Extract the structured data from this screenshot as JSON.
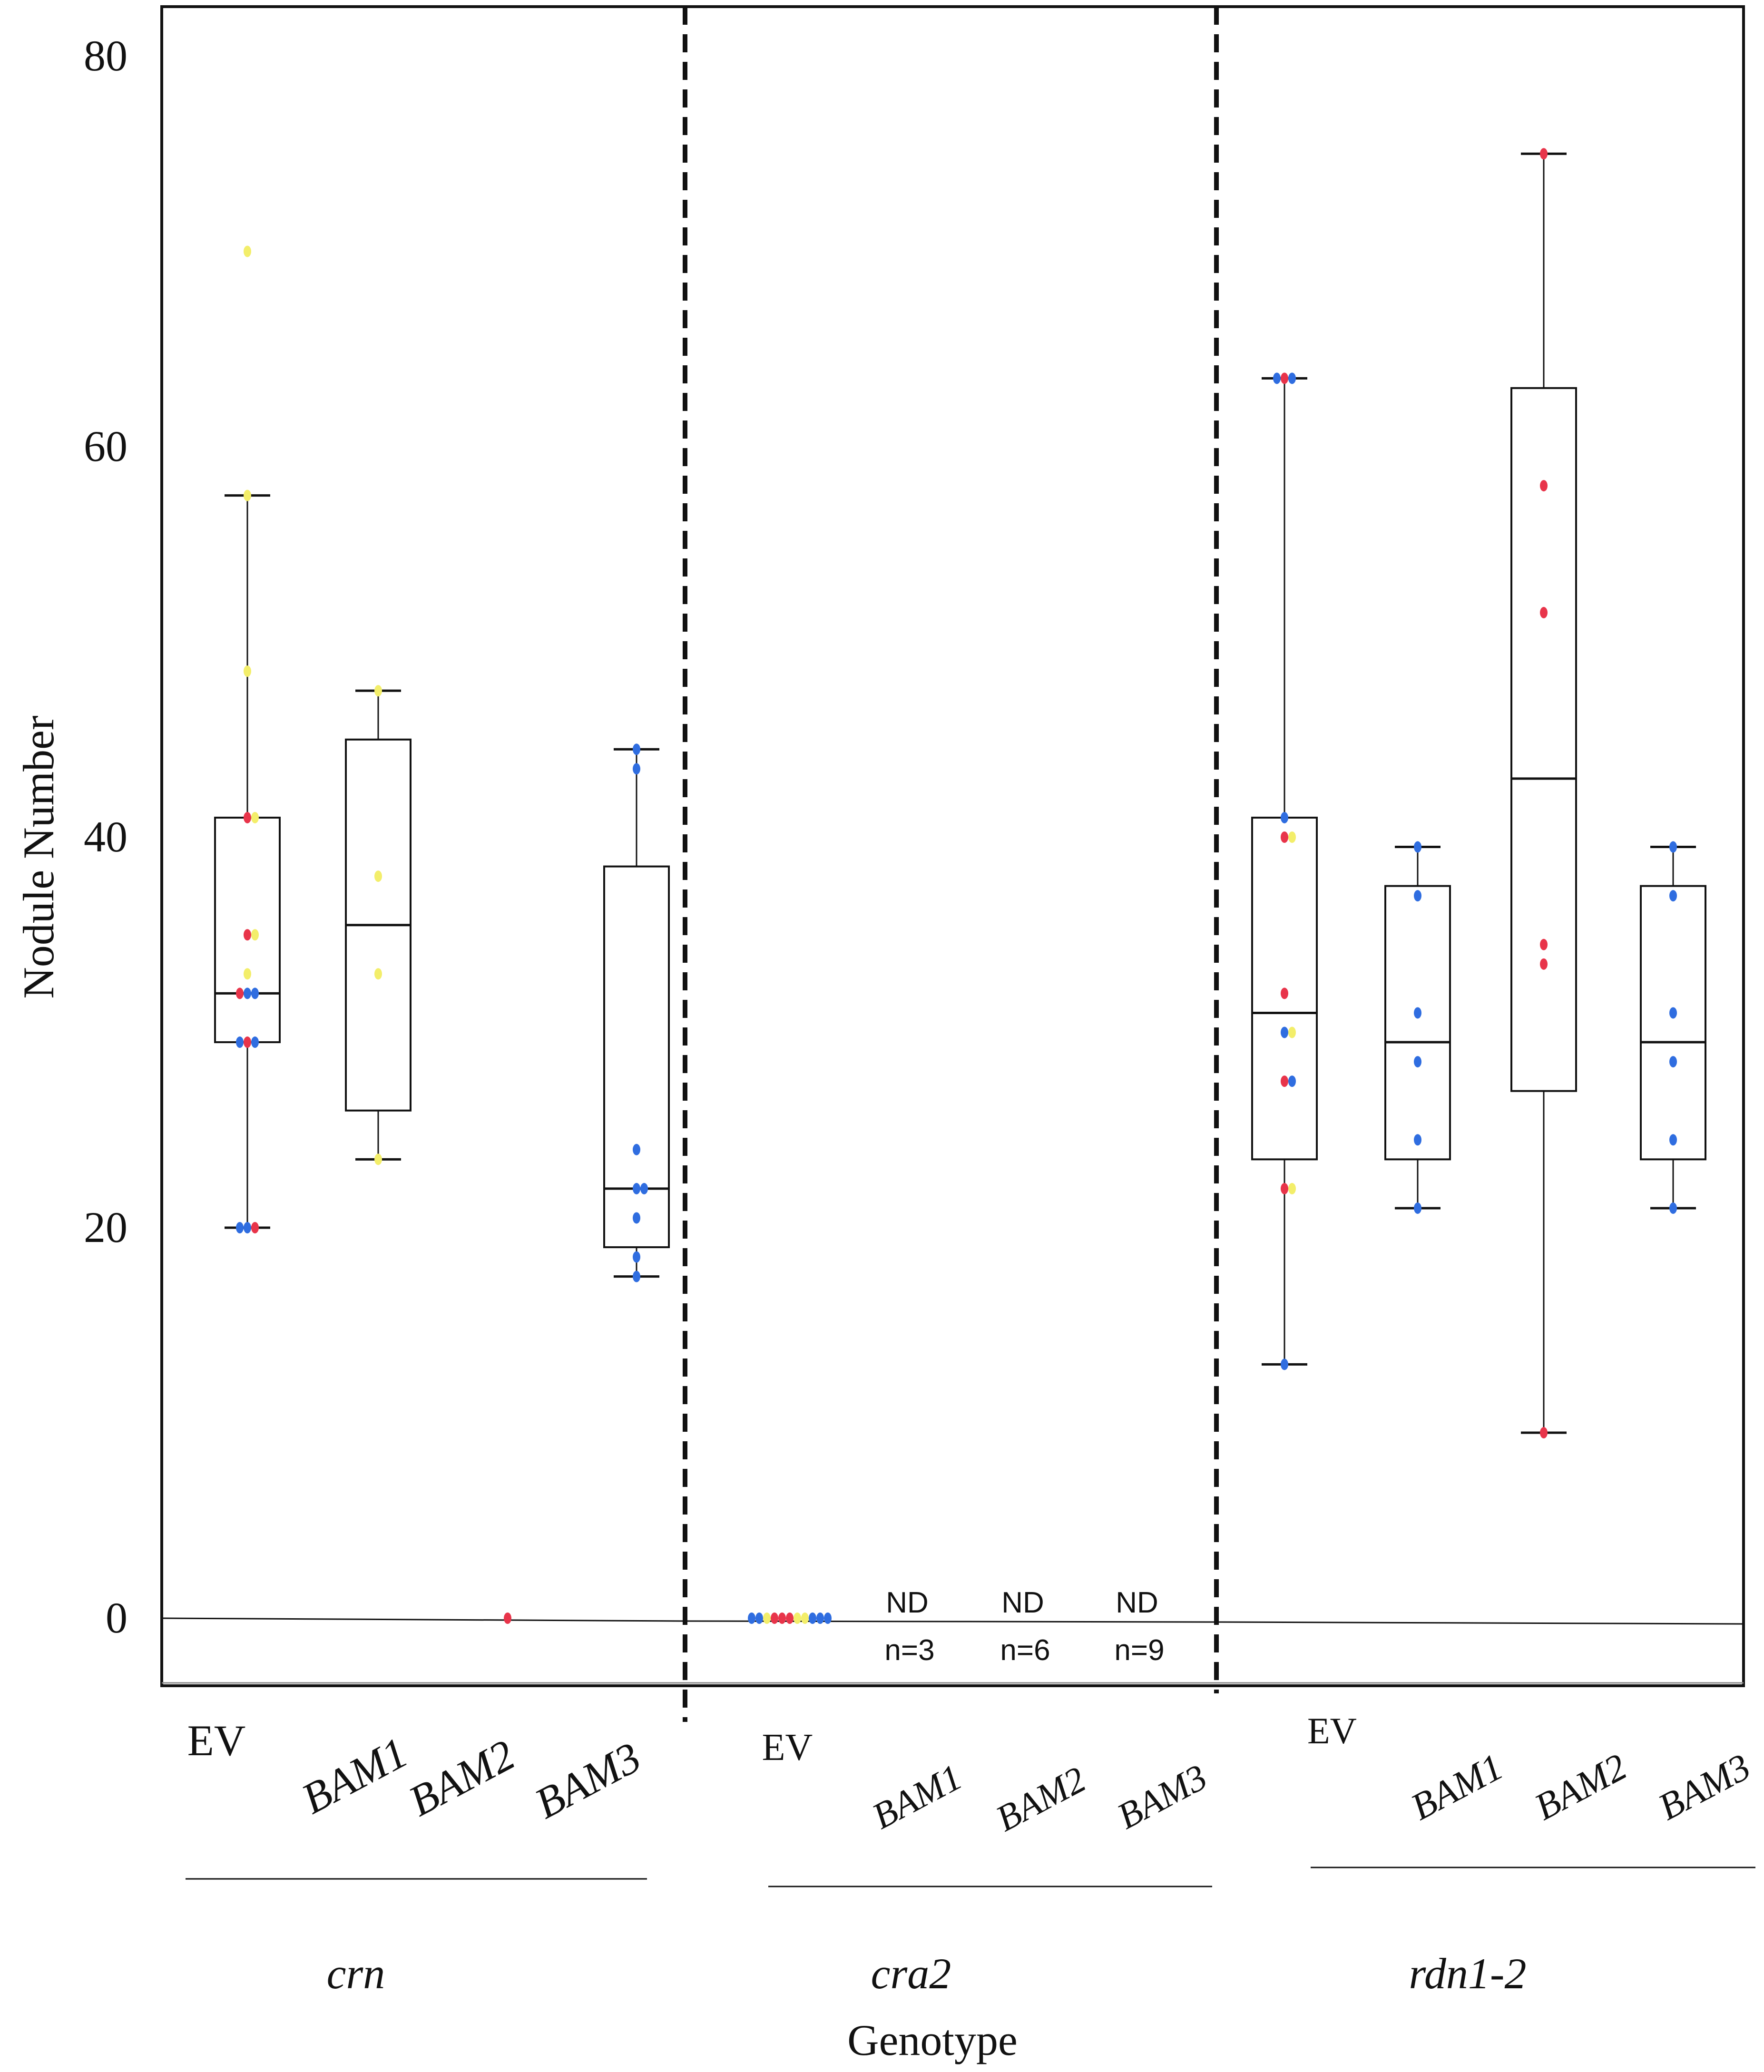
{
  "chart_data": {
    "type": "box",
    "ylabel": "Nodule Number",
    "xlabel": "Genotype",
    "ylim": [
      -4,
      83
    ],
    "yticks": [
      0,
      20,
      40,
      60,
      80
    ],
    "colors": {
      "red": "#e8344a",
      "blue": "#2f6de0",
      "yellow": "#f3ee6a"
    },
    "groups": [
      {
        "name": "crn",
        "boxes": [
          {
            "label": "EV",
            "min": 20,
            "q1": 29.5,
            "median": 32,
            "q3": 41,
            "max": 57.5,
            "points": [
              {
                "y": 70,
                "c": "yellow"
              },
              {
                "y": 57.5,
                "c": "yellow"
              },
              {
                "y": 48.5,
                "c": "yellow"
              },
              {
                "y": 41,
                "c": "red"
              },
              {
                "y": 41,
                "c": "yellow"
              },
              {
                "y": 35,
                "c": "red"
              },
              {
                "y": 35,
                "c": "yellow"
              },
              {
                "y": 33,
                "c": "yellow"
              },
              {
                "y": 32,
                "c": "blue"
              },
              {
                "y": 32,
                "c": "blue"
              },
              {
                "y": 32,
                "c": "red"
              },
              {
                "y": 29.5,
                "c": "red"
              },
              {
                "y": 29.5,
                "c": "blue"
              },
              {
                "y": 29.5,
                "c": "blue"
              },
              {
                "y": 20,
                "c": "blue"
              },
              {
                "y": 20,
                "c": "red"
              },
              {
                "y": 20,
                "c": "blue"
              }
            ]
          },
          {
            "label": "BAM1",
            "min": 23.5,
            "q1": 26,
            "median": 35.5,
            "q3": 45,
            "max": 47.5,
            "points": [
              {
                "y": 47.5,
                "c": "yellow"
              },
              {
                "y": 38,
                "c": "yellow"
              },
              {
                "y": 33,
                "c": "yellow"
              },
              {
                "y": 23.5,
                "c": "yellow"
              }
            ]
          },
          {
            "label": "BAM2",
            "min": 0,
            "q1": 0,
            "median": 0,
            "q3": 0,
            "max": 0,
            "points": [
              {
                "y": 0,
                "c": "red"
              }
            ]
          },
          {
            "label": "BAM3",
            "min": 17.5,
            "q1": 19,
            "median": 22,
            "q3": 38.5,
            "max": 44.5,
            "points": [
              {
                "y": 44.5,
                "c": "blue"
              },
              {
                "y": 43.5,
                "c": "blue"
              },
              {
                "y": 24,
                "c": "blue"
              },
              {
                "y": 22,
                "c": "blue"
              },
              {
                "y": 22,
                "c": "blue"
              },
              {
                "y": 20.5,
                "c": "blue"
              },
              {
                "y": 18.5,
                "c": "blue"
              },
              {
                "y": 17.5,
                "c": "blue"
              }
            ]
          }
        ]
      },
      {
        "name": "cra2",
        "boxes": [
          {
            "label": "EV",
            "min": 0,
            "q1": 0,
            "median": 0,
            "q3": 0,
            "max": 0,
            "points": [
              {
                "y": 0,
                "c": "blue"
              },
              {
                "y": 0,
                "c": "blue"
              },
              {
                "y": 0,
                "c": "yellow"
              },
              {
                "y": 0,
                "c": "red"
              },
              {
                "y": 0,
                "c": "red"
              },
              {
                "y": 0,
                "c": "red"
              },
              {
                "y": 0,
                "c": "yellow"
              },
              {
                "y": 0,
                "c": "yellow"
              },
              {
                "y": 0,
                "c": "blue"
              },
              {
                "y": 0,
                "c": "blue"
              },
              {
                "y": 0,
                "c": "blue"
              }
            ]
          },
          {
            "label": "BAM1",
            "nd": "ND",
            "n": "n=3"
          },
          {
            "label": "BAM2",
            "nd": "ND",
            "n": "n=6"
          },
          {
            "label": "BAM3",
            "nd": "ND",
            "n": "n=9"
          }
        ]
      },
      {
        "name": "rdn1-2",
        "boxes": [
          {
            "label": "EV",
            "min": 13,
            "q1": 23.5,
            "median": 31,
            "q3": 41,
            "max": 63.5,
            "points": [
              {
                "y": 63.5,
                "c": "red"
              },
              {
                "y": 63.5,
                "c": "blue"
              },
              {
                "y": 63.5,
                "c": "blue"
              },
              {
                "y": 41,
                "c": "blue"
              },
              {
                "y": 40,
                "c": "red"
              },
              {
                "y": 40,
                "c": "yellow"
              },
              {
                "y": 32,
                "c": "red"
              },
              {
                "y": 30,
                "c": "blue"
              },
              {
                "y": 30,
                "c": "yellow"
              },
              {
                "y": 27.5,
                "c": "red"
              },
              {
                "y": 27.5,
                "c": "blue"
              },
              {
                "y": 22,
                "c": "red"
              },
              {
                "y": 22,
                "c": "yellow"
              },
              {
                "y": 13,
                "c": "blue"
              }
            ]
          },
          {
            "label": "BAM1",
            "min": 21,
            "q1": 23.5,
            "median": 29.5,
            "q3": 37.5,
            "max": 39.5,
            "points": [
              {
                "y": 39.5,
                "c": "blue"
              },
              {
                "y": 37,
                "c": "blue"
              },
              {
                "y": 31,
                "c": "blue"
              },
              {
                "y": 28.5,
                "c": "blue"
              },
              {
                "y": 24.5,
                "c": "blue"
              },
              {
                "y": 21,
                "c": "blue"
              }
            ]
          },
          {
            "label": "BAM2",
            "min": 9.5,
            "q1": 27,
            "median": 43,
            "q3": 63,
            "max": 75,
            "points": [
              {
                "y": 75,
                "c": "red"
              },
              {
                "y": 58,
                "c": "red"
              },
              {
                "y": 51.5,
                "c": "red"
              },
              {
                "y": 34.5,
                "c": "red"
              },
              {
                "y": 33.5,
                "c": "red"
              },
              {
                "y": 9.5,
                "c": "red"
              }
            ]
          },
          {
            "label": "BAM3",
            "min": 21,
            "q1": 23.5,
            "median": 29.5,
            "q3": 37.5,
            "max": 39.5,
            "points": [
              {
                "y": 39.5,
                "c": "blue"
              },
              {
                "y": 37,
                "c": "blue"
              },
              {
                "y": 31,
                "c": "blue"
              },
              {
                "y": 28.5,
                "c": "blue"
              },
              {
                "y": 24.5,
                "c": "blue"
              },
              {
                "y": 21,
                "c": "blue"
              }
            ]
          }
        ]
      }
    ]
  }
}
